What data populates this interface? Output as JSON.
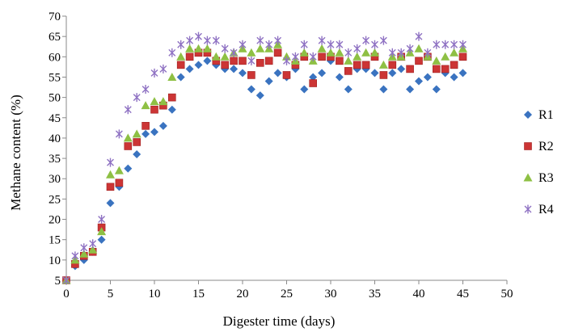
{
  "chart_data": {
    "type": "scatter",
    "title": "",
    "xlabel": "Digester time (days)",
    "ylabel": "Methane content (%)",
    "xlim": [
      0,
      50
    ],
    "ylim": [
      5,
      70
    ],
    "xticks": [
      0,
      5,
      10,
      15,
      20,
      25,
      30,
      35,
      40,
      45,
      50
    ],
    "yticks": [
      5,
      10,
      15,
      20,
      25,
      30,
      35,
      40,
      45,
      50,
      55,
      60,
      65,
      70
    ],
    "grid": false,
    "legend_position": "right",
    "x": [
      0,
      1,
      2,
      3,
      4,
      5,
      6,
      7,
      8,
      9,
      10,
      11,
      12,
      13,
      14,
      15,
      16,
      17,
      18,
      19,
      20,
      21,
      22,
      23,
      24,
      25,
      26,
      27,
      28,
      29,
      30,
      31,
      32,
      33,
      34,
      35,
      36,
      37,
      38,
      39,
      40,
      41,
      42,
      43,
      44,
      45
    ],
    "series": [
      {
        "name": "R1",
        "marker": "diamond",
        "color": "#3a73c0",
        "values": [
          5,
          8.5,
          10,
          12,
          15,
          24,
          28,
          32.5,
          36,
          41,
          41.5,
          43,
          47,
          55,
          57,
          58,
          59,
          58,
          57,
          57,
          56,
          52,
          50.5,
          54,
          56,
          55,
          57,
          52,
          55,
          56,
          59,
          55,
          52,
          57,
          57,
          56,
          52,
          56,
          57,
          52,
          54,
          55,
          52,
          56,
          55,
          56
        ]
      },
      {
        "name": "R2",
        "marker": "square",
        "color": "#cc3535",
        "values": [
          5,
          9,
          11,
          12,
          18,
          28,
          29,
          38,
          39,
          43,
          47,
          48,
          50,
          58,
          60,
          61,
          61,
          59,
          58,
          59,
          59,
          55.5,
          58.5,
          59,
          61,
          55.5,
          58,
          60,
          53.5,
          60,
          60,
          59,
          56.5,
          58,
          58,
          60,
          55.5,
          58,
          60,
          57,
          59,
          60,
          57,
          57,
          58,
          60
        ]
      },
      {
        "name": "R3",
        "marker": "triangle",
        "color": "#8ec044",
        "values": [
          5,
          10,
          11.5,
          12.5,
          17,
          31,
          32,
          40,
          41,
          48,
          49,
          49,
          55,
          60,
          62,
          62,
          62,
          60,
          60,
          61,
          62,
          61,
          62,
          62,
          63,
          60,
          59,
          61,
          59,
          62,
          61,
          61,
          59,
          60,
          61,
          61,
          58,
          60,
          60,
          61,
          62,
          60,
          59,
          60,
          61,
          62
        ]
      },
      {
        "name": "R4",
        "marker": "star",
        "color": "#8f72c3",
        "values": [
          5,
          11,
          13,
          14,
          20,
          34,
          41,
          47,
          50,
          52,
          56,
          57,
          61,
          63,
          64,
          65,
          64,
          64,
          62,
          61,
          63,
          59,
          64,
          63,
          64,
          59,
          60,
          63,
          60,
          64,
          63,
          63,
          61,
          62,
          64,
          63,
          64,
          61,
          61,
          62,
          65,
          61,
          63,
          63,
          63,
          63
        ]
      }
    ]
  }
}
